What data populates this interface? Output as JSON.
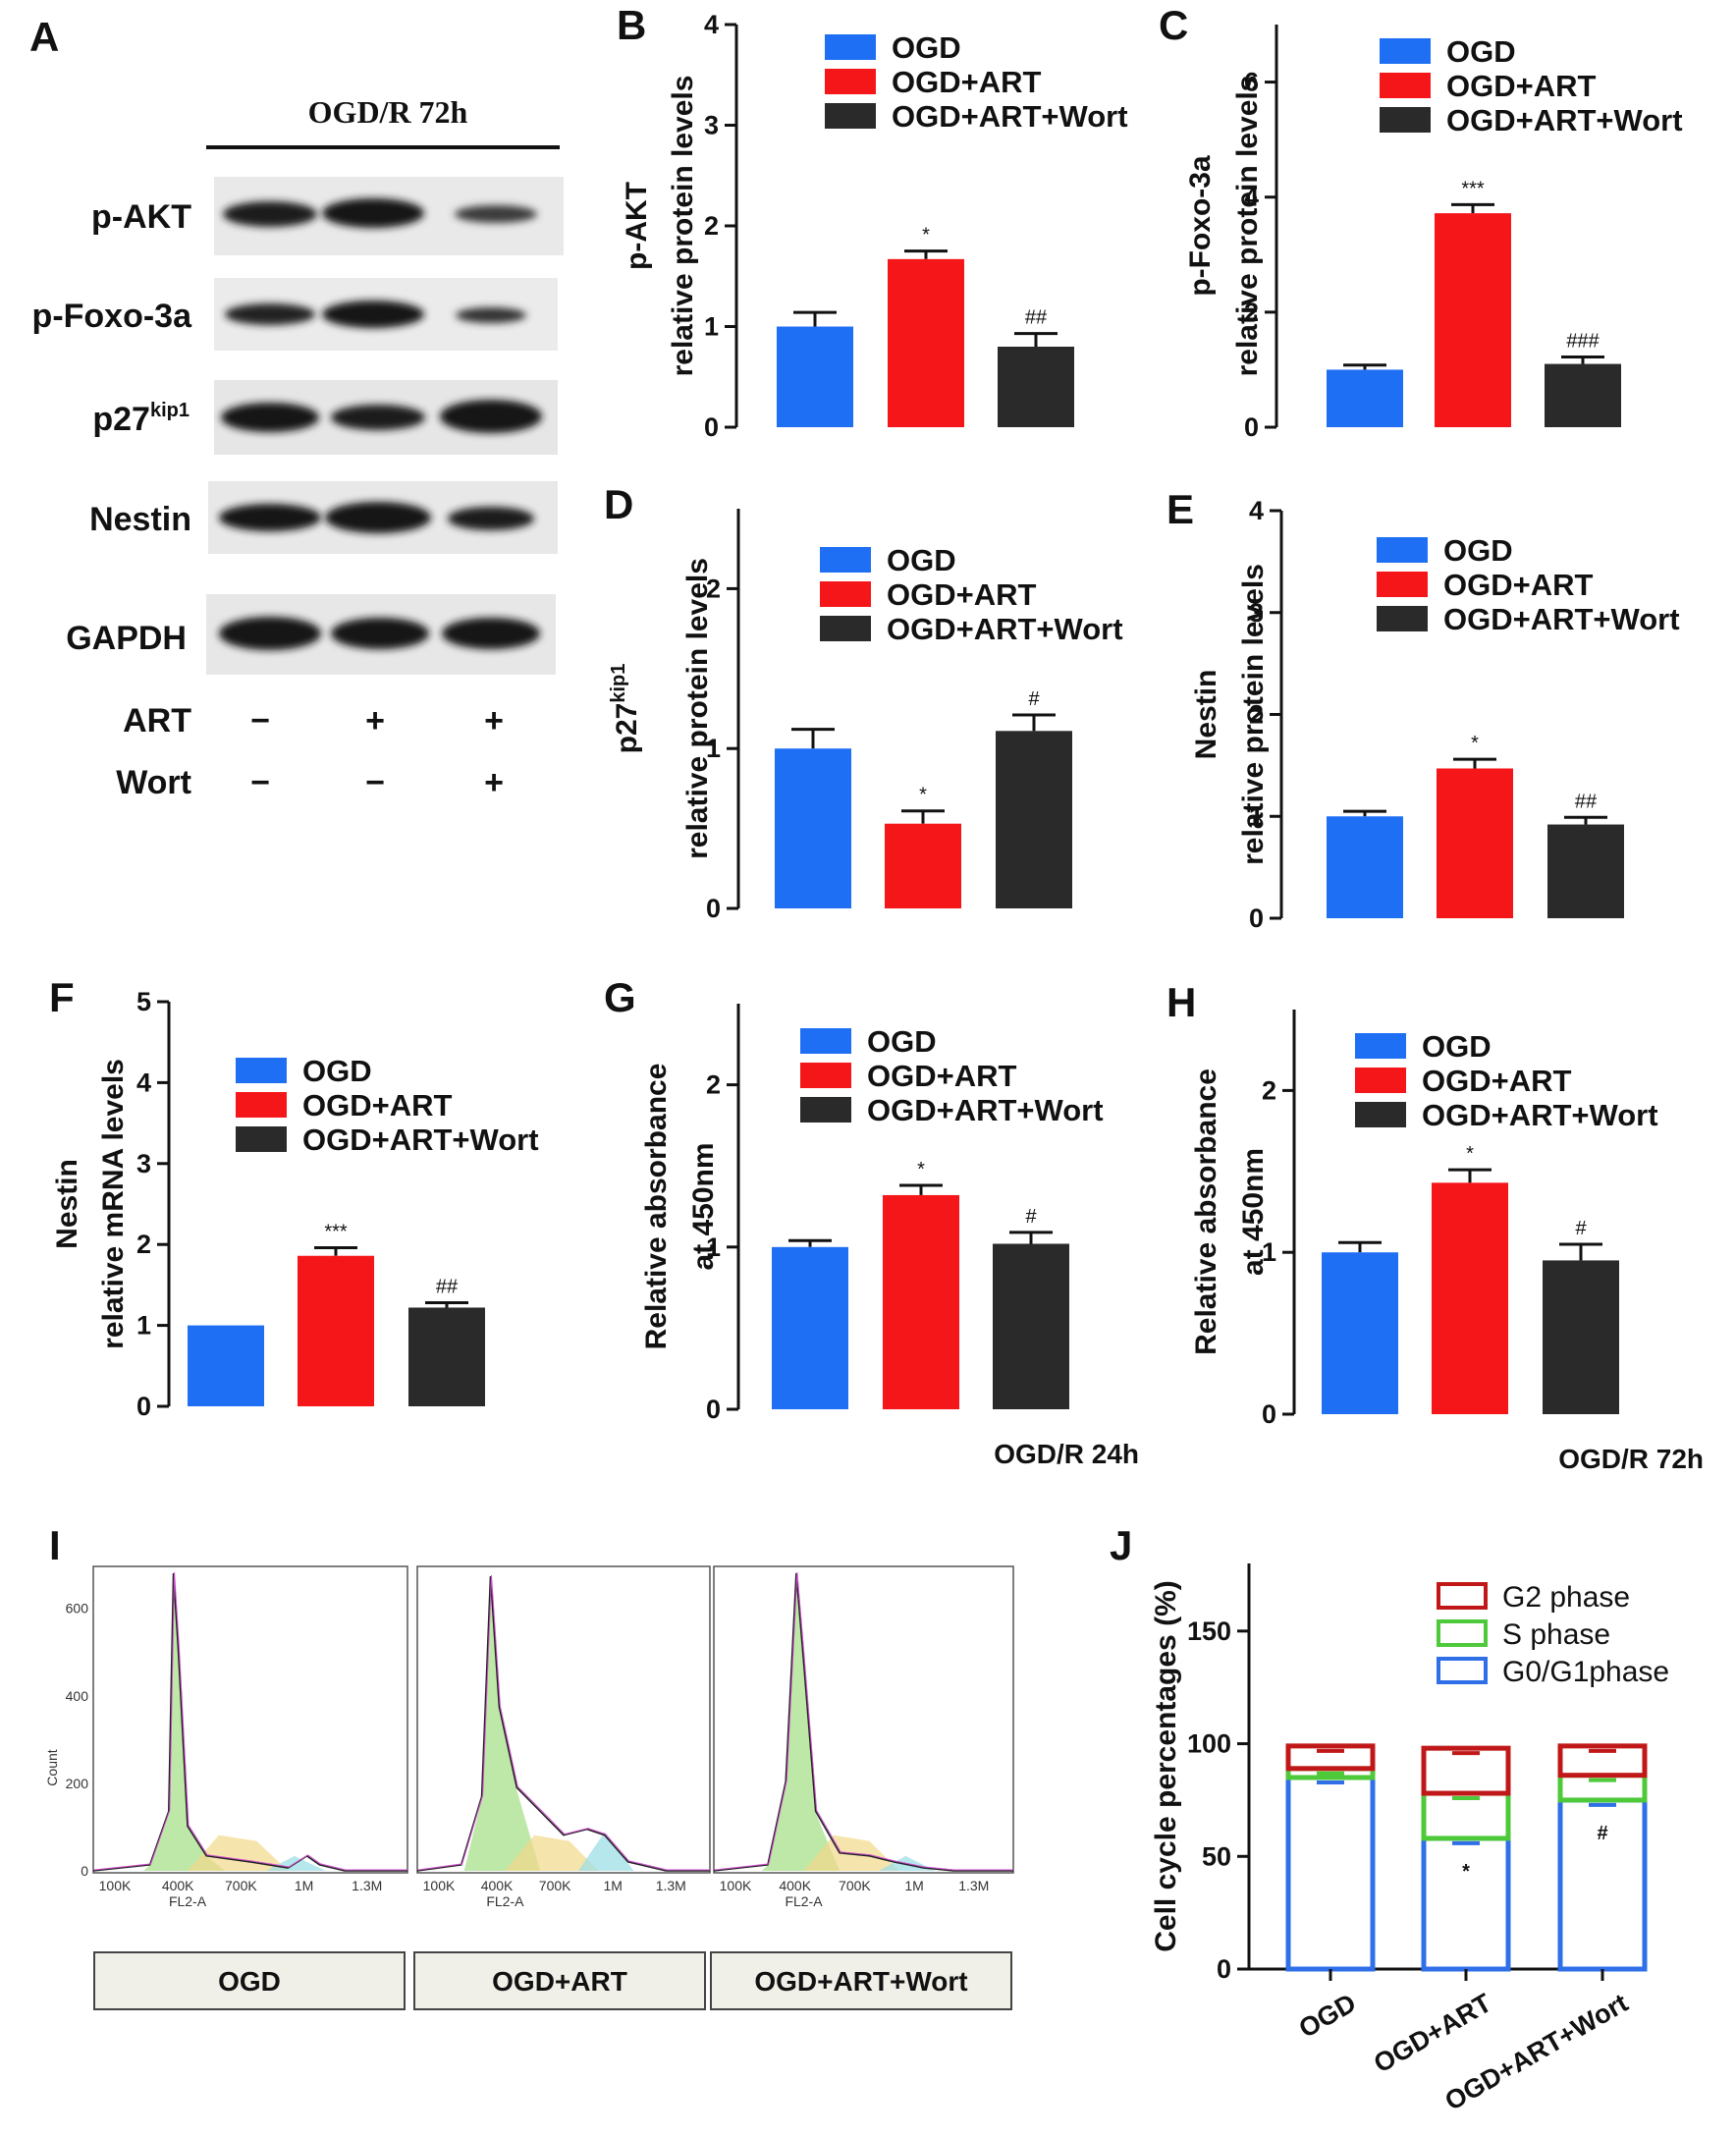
{
  "colors": {
    "ogd": "#1f6ff5",
    "art": "#f5161a",
    "wort": "#2a2a2a",
    "g2": "#c01818",
    "s": "#4ec93a",
    "g01": "#2f6fe8"
  },
  "panel_labels": {
    "A": "A",
    "B": "B",
    "C": "C",
    "D": "D",
    "E": "E",
    "F": "F",
    "G": "G",
    "H": "H",
    "I": "I",
    "J": "J"
  },
  "western_blot": {
    "title": "OGD/R 72h",
    "bands": [
      {
        "label": "p-AKT",
        "sup": ""
      },
      {
        "label": "p-Foxo-3a",
        "sup": ""
      },
      {
        "label": "p27",
        "sup": "kip1"
      },
      {
        "label": "Nestin",
        "sup": ""
      },
      {
        "label": "GAPDH",
        "sup": ""
      }
    ],
    "treatment_rows": [
      {
        "label": "ART",
        "signs": [
          "−",
          "+",
          "+"
        ]
      },
      {
        "label": "Wort",
        "signs": [
          "−",
          "−",
          "+"
        ]
      }
    ]
  },
  "flow_cytometry": {
    "x_axis_label": "FL2-A",
    "y_axis_label": "Count",
    "x_ticks": [
      "100K",
      "400K",
      "700K",
      "1M",
      "1.3M"
    ],
    "y_ticks": [
      "0",
      "200",
      "400",
      "600"
    ],
    "groups": [
      "OGD",
      "OGD+ART",
      "OGD+ART+Wort"
    ]
  },
  "chart_data": [
    {
      "id": "B",
      "type": "bar",
      "ylabel": [
        "p-AKT",
        "relative protein levels"
      ],
      "ylim": [
        0,
        4
      ],
      "yticks": [
        "0",
        "1",
        "2",
        "3",
        "4"
      ],
      "categories": [
        "OGD",
        "OGD+ART",
        "OGD+ART+Wort"
      ],
      "values": [
        1.0,
        1.67,
        0.8
      ],
      "errors": [
        0.14,
        0.08,
        0.13
      ],
      "annotations": [
        "",
        "*",
        "##"
      ],
      "legend": [
        "OGD",
        "OGD+ART",
        "OGD+ART+Wort"
      ],
      "caption": ""
    },
    {
      "id": "C",
      "type": "bar",
      "ylabel": [
        "p-Foxo-3a",
        "relative protein levels"
      ],
      "ylim": [
        0,
        7
      ],
      "yticks": [
        "0",
        "2",
        "4",
        "6"
      ],
      "categories": [
        "OGD",
        "OGD+ART",
        "OGD+ART+Wort"
      ],
      "values": [
        1.0,
        3.72,
        1.1
      ],
      "errors": [
        0.08,
        0.15,
        0.12
      ],
      "annotations": [
        "",
        "***",
        "###"
      ],
      "legend": [
        "OGD",
        "OGD+ART",
        "OGD+ART+Wort"
      ],
      "caption": ""
    },
    {
      "id": "D",
      "type": "bar",
      "ylabel": [
        "p27",
        "relative protein levels"
      ],
      "ylabel_sup": "kip1",
      "ylim": [
        0,
        2.5
      ],
      "yticks": [
        "0",
        "1",
        "2"
      ],
      "categories": [
        "OGD",
        "OGD+ART",
        "OGD+ART+Wort"
      ],
      "values": [
        1.0,
        0.53,
        1.11
      ],
      "errors": [
        0.12,
        0.08,
        0.1
      ],
      "annotations": [
        "",
        "*",
        "#"
      ],
      "legend": [
        "OGD",
        "OGD+ART",
        "OGD+ART+Wort"
      ],
      "caption": ""
    },
    {
      "id": "E",
      "type": "bar",
      "ylabel": [
        "Nestin",
        "relative protein levels"
      ],
      "ylim": [
        0,
        4
      ],
      "yticks": [
        "0",
        "1",
        "2",
        "3",
        "4"
      ],
      "categories": [
        "OGD",
        "OGD+ART",
        "OGD+ART+Wort"
      ],
      "values": [
        1.0,
        1.47,
        0.92
      ],
      "errors": [
        0.05,
        0.09,
        0.07
      ],
      "annotations": [
        "",
        "*",
        "##"
      ],
      "legend": [
        "OGD",
        "OGD+ART",
        "OGD+ART+Wort"
      ],
      "caption": ""
    },
    {
      "id": "F",
      "type": "bar",
      "ylabel": [
        "Nestin",
        "relative mRNA levels"
      ],
      "ylim": [
        0,
        5
      ],
      "yticks": [
        "0",
        "1",
        "2",
        "3",
        "4",
        "5"
      ],
      "categories": [
        "OGD",
        "OGD+ART",
        "OGD+ART+Wort"
      ],
      "values": [
        1.0,
        1.86,
        1.22
      ],
      "errors": [
        0,
        0.1,
        0.06
      ],
      "annotations": [
        "",
        "***",
        "##"
      ],
      "legend": [
        "OGD",
        "OGD+ART",
        "OGD+ART+Wort"
      ],
      "caption": ""
    },
    {
      "id": "G",
      "type": "bar",
      "ylabel": [
        "Relative absorbance",
        "at 450nm"
      ],
      "ylim": [
        0,
        2.5
      ],
      "yticks": [
        "0",
        "1",
        "2"
      ],
      "categories": [
        "OGD",
        "OGD+ART",
        "OGD+ART+Wort"
      ],
      "values": [
        1.0,
        1.32,
        1.02
      ],
      "errors": [
        0.04,
        0.06,
        0.07
      ],
      "annotations": [
        "",
        "*",
        "#"
      ],
      "legend": [
        "OGD",
        "OGD+ART",
        "OGD+ART+Wort"
      ],
      "caption": "OGD/R 24h"
    },
    {
      "id": "H",
      "type": "bar",
      "ylabel": [
        "Relative absorbance",
        "at 450nm"
      ],
      "ylim": [
        0,
        2.5
      ],
      "yticks": [
        "0",
        "1",
        "2"
      ],
      "categories": [
        "OGD",
        "OGD+ART",
        "OGD+ART+Wort"
      ],
      "values": [
        1.0,
        1.43,
        0.95
      ],
      "errors": [
        0.06,
        0.08,
        0.1
      ],
      "annotations": [
        "",
        "*",
        "#"
      ],
      "legend": [
        "OGD",
        "OGD+ART",
        "OGD+ART+Wort"
      ],
      "caption": "OGD/R 72h"
    },
    {
      "id": "J",
      "type": "bar",
      "stacked": true,
      "ylabel": [
        "Cell cycle percentages (%)"
      ],
      "ylim": [
        0,
        180
      ],
      "yticks": [
        "0",
        "50",
        "100",
        "150"
      ],
      "categories": [
        "OGD",
        "OGD+ART",
        "OGD+ART+Wort"
      ],
      "series": [
        {
          "name": "G0/G1phase",
          "values": [
            85,
            58,
            75
          ]
        },
        {
          "name": "S phase",
          "values": [
            4,
            20,
            11
          ]
        },
        {
          "name": "G2 phase",
          "values": [
            10,
            20,
            13
          ]
        }
      ],
      "annotations": [
        "",
        "*",
        "#"
      ],
      "legend": [
        "G2 phase",
        "S phase",
        "G0/G1phase"
      ]
    }
  ]
}
